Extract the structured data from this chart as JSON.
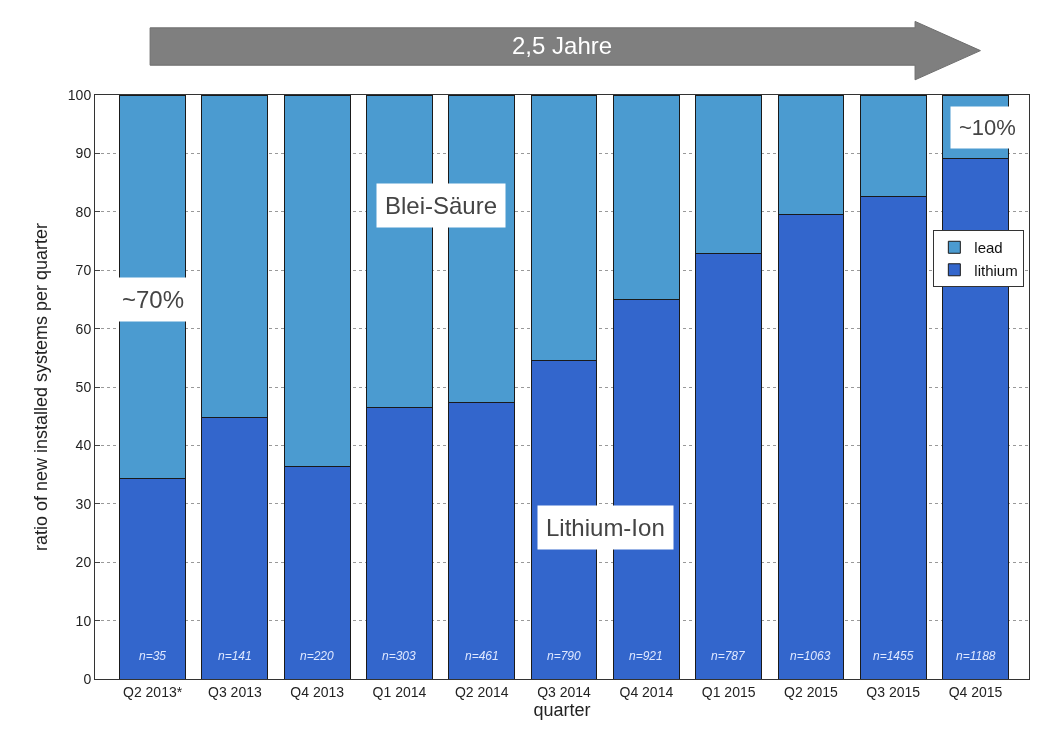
{
  "chart_data": {
    "type": "bar",
    "stacked": true,
    "xlabel": "quarter",
    "ylabel": "ratio of new installed systems per quarter",
    "categories": [
      "Q2 2013*",
      "Q3 2013",
      "Q4 2013",
      "Q1 2014",
      "Q2 2014",
      "Q3 2014",
      "Q4 2014",
      "Q1 2015",
      "Q2 2015",
      "Q3 2015",
      "Q4 2015"
    ],
    "series": [
      {
        "name": "lithium",
        "color": "#3366cc",
        "values": [
          34.3,
          44.7,
          36.4,
          46.5,
          47.3,
          54.6,
          64.9,
          72.8,
          79.6,
          82.7,
          89.2
        ]
      },
      {
        "name": "lead",
        "color": "#4b9bd0",
        "values": [
          65.7,
          55.3,
          63.6,
          53.5,
          52.7,
          45.4,
          35.1,
          27.2,
          20.4,
          17.3,
          10.8
        ]
      }
    ],
    "ylim": [
      0,
      100
    ],
    "yticks": [
      0,
      10,
      20,
      30,
      40,
      50,
      60,
      70,
      80,
      90,
      100
    ],
    "grid": "y",
    "legend": "right",
    "annotations": [
      "2,5 Jahre",
      "~70%",
      "Blei-Säure",
      "Lithium-Ion",
      "~10%",
      "n=35",
      "n=141",
      "n=220",
      "n=303",
      "n=461",
      "n=790",
      "n=921",
      "n=787",
      "n=1063",
      "n=1455",
      "n=1188"
    ]
  }
}
